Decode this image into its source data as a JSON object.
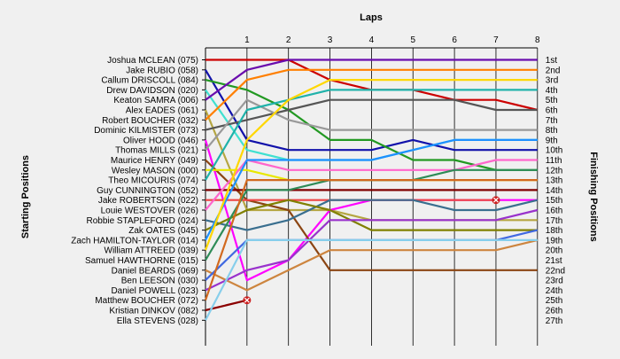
{
  "chart_data": {
    "type": "line",
    "title": "Laps",
    "xlabel": "Laps",
    "ylabel_left": "Starting Positions",
    "ylabel_right": "Finishing Positions",
    "x_ticks": [
      1,
      2,
      3,
      4,
      5,
      6,
      7,
      8
    ],
    "y_range": [
      1,
      27
    ],
    "grid": "vertical",
    "drivers": [
      {
        "name": "Joshua MCLEAN (075)",
        "color": "#cc0000",
        "positions": [
          1,
          1,
          1,
          3,
          4,
          4,
          5,
          5,
          6
        ]
      },
      {
        "name": "Jake RUBIO (058)",
        "color": "#1111aa",
        "positions": [
          2,
          9,
          10,
          10,
          10,
          9,
          10,
          10,
          10
        ]
      },
      {
        "name": "Callum DRISCOLL (084)",
        "color": "#229922",
        "positions": [
          3,
          4,
          6,
          9,
          9,
          11,
          11,
          12,
          12
        ]
      },
      {
        "name": "Drew DAVIDSON (020)",
        "color": "#40e0d0",
        "positions": [
          4,
          10,
          11,
          11,
          11,
          10,
          9,
          9,
          9
        ]
      },
      {
        "name": "Keaton SAMRA (006)",
        "color": "#6a0dad",
        "positions": [
          5,
          2,
          1,
          1,
          1,
          1,
          1,
          1,
          1
        ]
      },
      {
        "name": "Alex EADES (061)",
        "color": "#b5a642",
        "positions": [
          6,
          16,
          16,
          16,
          17,
          17,
          17,
          17,
          17
        ]
      },
      {
        "name": "Robert BOUCHER (032)",
        "color": "#ff7f00",
        "positions": [
          7,
          3,
          2,
          2,
          2,
          2,
          2,
          2,
          2
        ]
      },
      {
        "name": "Dominic KILMISTER (073)",
        "color": "#555555",
        "positions": [
          8,
          7,
          6,
          5,
          5,
          5,
          5,
          6,
          6
        ]
      },
      {
        "name": "Oliver HOOD (046)",
        "color": "#ff00ff",
        "positions": [
          9,
          23,
          21,
          16,
          15,
          15,
          15,
          15,
          15
        ]
      },
      {
        "name": "Thomas MILLS (021)",
        "color": "#999999",
        "positions": [
          10,
          5,
          7,
          8,
          8,
          8,
          8,
          8,
          8
        ]
      },
      {
        "name": "Maurice HENRY (049)",
        "color": "#8b4513",
        "positions": [
          11,
          15,
          16,
          22,
          22,
          22,
          22,
          22,
          22
        ]
      },
      {
        "name": "Wesley MASON (000)",
        "color": "#e8e800",
        "positions": [
          12,
          12,
          13,
          13,
          13,
          13,
          13,
          13,
          13
        ]
      },
      {
        "name": "Theo MICOURIS (074)",
        "color": "#20b2aa",
        "positions": [
          13,
          6,
          5,
          4,
          4,
          4,
          4,
          4,
          4
        ]
      },
      {
        "name": "Guy CUNNINGTON (052)",
        "color": "#800000",
        "positions": [
          14,
          14,
          14,
          14,
          14,
          14,
          14,
          14,
          14
        ]
      },
      {
        "name": "Jake ROBERTSON (022)",
        "color": "#ee4444",
        "positions": [
          15,
          15,
          15,
          15,
          15,
          15,
          15,
          15
        ]
      },
      {
        "name": "Louie WESTOVER (026)",
        "color": "#ff66cc",
        "positions": [
          16,
          11,
          12,
          12,
          12,
          12,
          12,
          11,
          11
        ]
      },
      {
        "name": "Robbie STAPLEFORD (024)",
        "color": "#3a6f8f",
        "positions": [
          17,
          18,
          17,
          15,
          15,
          15,
          16,
          16,
          15
        ]
      },
      {
        "name": "Zak OATES (045)",
        "color": "#808000",
        "positions": [
          18,
          16,
          15,
          16,
          18,
          18,
          18,
          18,
          18
        ]
      },
      {
        "name": "Zach HAMILTON-TAYLOR (014)",
        "color": "#1e90ff",
        "positions": [
          19,
          11,
          11,
          11,
          11,
          10,
          9,
          9,
          9
        ]
      },
      {
        "name": "William ATTREED (039)",
        "color": "#ffd700",
        "positions": [
          20,
          9,
          5,
          3,
          3,
          3,
          3,
          3,
          3
        ]
      },
      {
        "name": "Samuel HAWTHORNE (015)",
        "color": "#2e8b57",
        "positions": [
          21,
          14,
          14,
          13,
          13,
          13,
          12,
          12,
          12
        ]
      },
      {
        "name": "Daniel BEARDS (069)",
        "color": "#cd853f",
        "positions": [
          22,
          24,
          22,
          20,
          20,
          20,
          20,
          20,
          19
        ]
      },
      {
        "name": "Ben LEESON (030)",
        "color": "#4169e1",
        "positions": [
          23,
          19,
          19,
          19,
          19,
          19,
          19,
          19,
          18
        ]
      },
      {
        "name": "Daniel POWELL (023)",
        "color": "#9932cc",
        "positions": [
          24,
          22,
          21,
          17,
          17,
          17,
          17,
          17,
          16
        ]
      },
      {
        "name": "Matthew BOUCHER (072)",
        "color": "#d2691e",
        "positions": [
          25,
          13,
          13,
          13,
          13,
          13,
          13,
          13,
          13
        ]
      },
      {
        "name": "Kristian DINKOV (082)",
        "color": "#8b0000",
        "positions": [
          26,
          25
        ]
      },
      {
        "name": "Ella STEVENS (028)",
        "color": "#87ceeb",
        "positions": [
          27,
          19,
          19,
          19,
          19,
          19,
          19,
          19,
          19
        ]
      }
    ],
    "finishing_labels": [
      "1st",
      "2nd",
      "3rd",
      "4th",
      "5th",
      "6th",
      "7th",
      "8th",
      "9th",
      "10th",
      "11th",
      "12th",
      "13th",
      "14th",
      "15th",
      "16th",
      "17th",
      "18th",
      "19th",
      "20th",
      "21st",
      "22nd",
      "23rd",
      "24th",
      "25th",
      "26th",
      "27th"
    ],
    "retirements": [
      {
        "driver": "Kristian DINKOV (082)",
        "lap": 1,
        "position": 25,
        "marker": "x"
      },
      {
        "driver": "Jake ROBERTSON (022)",
        "lap": 7,
        "position": 15,
        "marker": "x"
      }
    ]
  }
}
